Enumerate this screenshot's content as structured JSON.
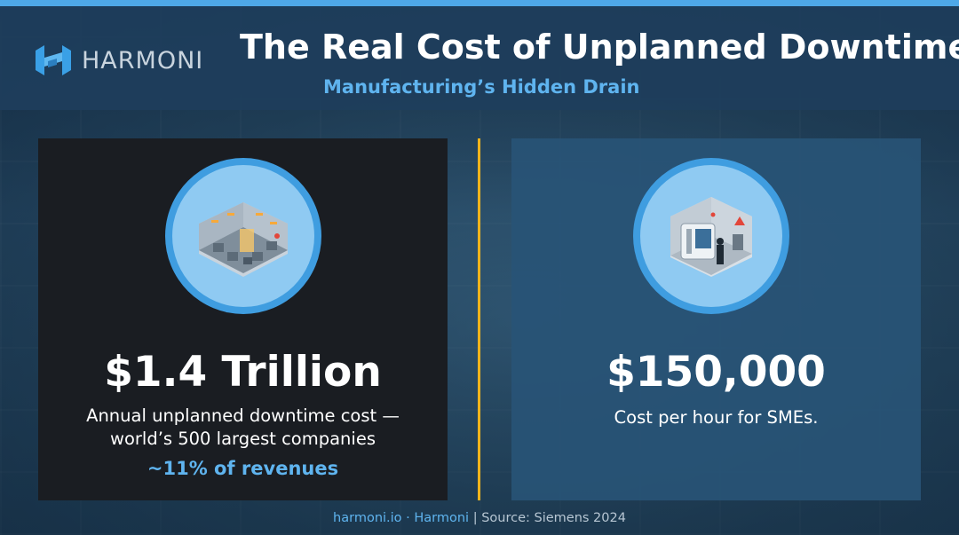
{
  "brand": {
    "name": "HARMONI",
    "logo_icon": "harmoni-logo-icon",
    "accent": "#4ea8e8"
  },
  "header": {
    "title": "The Real Cost of Unplanned Downtime",
    "subtitle": "Manufacturing’s Hidden Drain"
  },
  "left_card": {
    "icon": "factory-floor-icon",
    "value": "$1.4 Trillion",
    "description_line1": "Annual unplanned downtime cost —",
    "description_line2": "world’s 500 largest companies",
    "highlight": "~11% of revenues"
  },
  "right_card": {
    "icon": "machine-operator-icon",
    "value": "$150,000",
    "description": "Cost per hour for SMEs."
  },
  "footer": {
    "site": "harmoni.io · Harmoni",
    "separator": " | ",
    "source": "Source: Siemens 2024"
  },
  "colors": {
    "divider": "#f0b41c",
    "highlight": "#5fb4ef",
    "left_panel": "#1a1d22",
    "right_panel": "#285476"
  }
}
